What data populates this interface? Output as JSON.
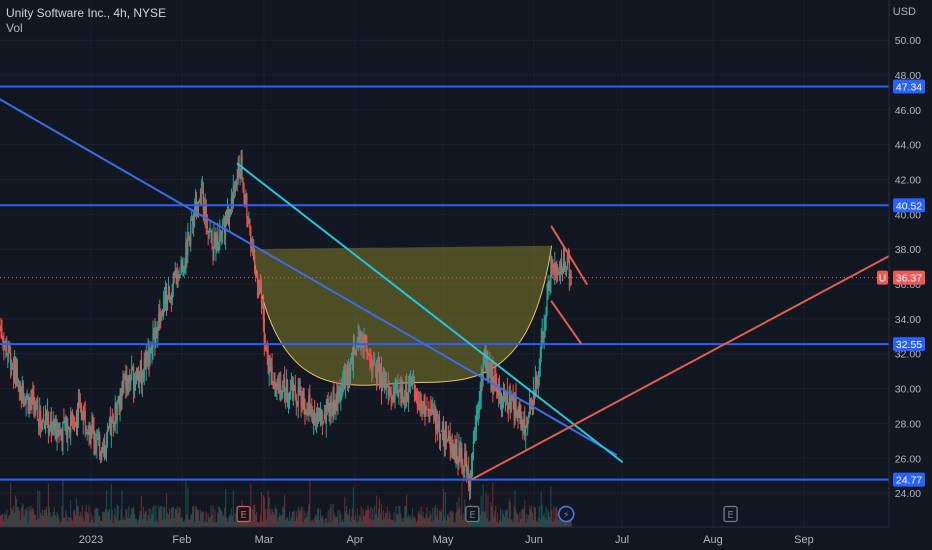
{
  "header": {
    "title": "Unity Software Inc., 4h, NYSE",
    "volume_label": "Vol",
    "currency": "USD"
  },
  "colors": {
    "background": "#131722",
    "grid": "#1e222d",
    "candle_up": "#26a69a",
    "candle_down": "#ef5350",
    "horizontal_levels": "#2962ff",
    "downtrend_blue": "#3b6fe8",
    "downtrend_teal": "#26c6da",
    "uptrend_red": "#e0604f",
    "cup_fill": "#7e7a2a",
    "cup_outline": "#e6c868",
    "price_badge": "#f05a55"
  },
  "chart_data": {
    "type": "line",
    "title": "Unity Software Inc., 4h, NYSE",
    "xlabel": "",
    "ylabel": "USD",
    "ylim": [
      22.8,
      51.5
    ],
    "xlim": [
      "2022-12-01",
      "2023-09-30"
    ],
    "grid": true,
    "x_tick_labels": [
      "2023",
      "Feb",
      "Mar",
      "Apr",
      "May",
      "Jun",
      "Jul",
      "Aug",
      "Sep"
    ],
    "x_tick_dates": [
      "2023-01-01",
      "2023-02-01",
      "2023-03-01",
      "2023-04-01",
      "2023-05-01",
      "2023-06-01",
      "2023-07-01",
      "2023-08-01",
      "2023-09-01"
    ],
    "y_ticks": [
      24,
      26,
      28,
      30,
      32,
      34,
      36,
      38,
      40,
      42,
      44,
      46,
      48,
      50
    ],
    "y_tick_labels": [
      "24.00",
      "26.00",
      "28.00",
      "30.00",
      "32.00",
      "34.00",
      "36.00",
      "38.00",
      "40.00",
      "42.00",
      "44.00",
      "46.00",
      "48.00",
      "50.00"
    ],
    "last_price": 36.37,
    "last_price_label": "36.37",
    "symbol_badge": "U",
    "horizontal_levels": [
      {
        "value": 47.34,
        "label": "47.34"
      },
      {
        "value": 40.52,
        "label": "40.52"
      },
      {
        "value": 32.55,
        "label": "32.55"
      },
      {
        "value": 24.77,
        "label": "24.77"
      }
    ],
    "close_series": [
      {
        "x": "2022-12-01",
        "y": 33.5
      },
      {
        "x": "2022-12-08",
        "y": 30.0
      },
      {
        "x": "2022-12-15",
        "y": 28.3
      },
      {
        "x": "2022-12-22",
        "y": 27.5
      },
      {
        "x": "2022-12-29",
        "y": 28.8
      },
      {
        "x": "2023-01-05",
        "y": 26.2
      },
      {
        "x": "2023-01-12",
        "y": 30.2
      },
      {
        "x": "2023-01-19",
        "y": 31.0
      },
      {
        "x": "2023-01-26",
        "y": 34.8
      },
      {
        "x": "2023-02-02",
        "y": 37.5
      },
      {
        "x": "2023-02-07",
        "y": 41.5
      },
      {
        "x": "2023-02-12",
        "y": 38.0
      },
      {
        "x": "2023-02-17",
        "y": 40.2
      },
      {
        "x": "2023-02-21",
        "y": 42.8
      },
      {
        "x": "2023-02-24",
        "y": 39.2
      },
      {
        "x": "2023-02-28",
        "y": 35.0
      },
      {
        "x": "2023-03-02",
        "y": 31.5
      },
      {
        "x": "2023-03-07",
        "y": 30.0
      },
      {
        "x": "2023-03-13",
        "y": 29.5
      },
      {
        "x": "2023-03-20",
        "y": 28.2
      },
      {
        "x": "2023-03-27",
        "y": 29.8
      },
      {
        "x": "2023-04-03",
        "y": 32.8
      },
      {
        "x": "2023-04-08",
        "y": 31.0
      },
      {
        "x": "2023-04-14",
        "y": 29.5
      },
      {
        "x": "2023-04-20",
        "y": 30.0
      },
      {
        "x": "2023-04-27",
        "y": 28.5
      },
      {
        "x": "2023-05-03",
        "y": 27.0
      },
      {
        "x": "2023-05-08",
        "y": 25.8
      },
      {
        "x": "2023-05-10",
        "y": 24.9
      },
      {
        "x": "2023-05-12",
        "y": 28.0
      },
      {
        "x": "2023-05-15",
        "y": 31.8
      },
      {
        "x": "2023-05-19",
        "y": 29.8
      },
      {
        "x": "2023-05-24",
        "y": 29.2
      },
      {
        "x": "2023-05-29",
        "y": 28.0
      },
      {
        "x": "2023-06-01",
        "y": 29.8
      },
      {
        "x": "2023-06-05",
        "y": 34.0
      },
      {
        "x": "2023-06-07",
        "y": 37.8
      },
      {
        "x": "2023-06-09",
        "y": 36.3
      },
      {
        "x": "2023-06-12",
        "y": 37.5
      },
      {
        "x": "2023-06-14",
        "y": 36.4
      }
    ],
    "trendlines": [
      {
        "name": "downtrend-blue",
        "color": "#3b6fe8",
        "points": [
          {
            "x": "2022-12-01",
            "y": 46.6
          },
          {
            "x": "2023-06-29",
            "y": 26.2
          }
        ]
      },
      {
        "name": "downtrend-teal",
        "color": "#26c6da",
        "points": [
          {
            "x": "2023-02-20",
            "y": 42.9
          },
          {
            "x": "2023-07-01",
            "y": 25.8
          }
        ]
      },
      {
        "name": "uptrend-red",
        "color": "#e0604f",
        "points": [
          {
            "x": "2023-05-11",
            "y": 24.8
          },
          {
            "x": "2023-09-30",
            "y": 37.6
          }
        ]
      },
      {
        "name": "flag-upper",
        "color": "#e0604f",
        "points": [
          {
            "x": "2023-06-07",
            "y": 39.3
          },
          {
            "x": "2023-06-19",
            "y": 36.0
          }
        ]
      },
      {
        "name": "flag-lower",
        "color": "#e0604f",
        "points": [
          {
            "x": "2023-06-07",
            "y": 35.0
          },
          {
            "x": "2023-06-17",
            "y": 32.6
          }
        ]
      }
    ],
    "cup_pattern": {
      "left": {
        "x": "2023-02-25",
        "y": 38.0
      },
      "right": {
        "x": "2023-06-07",
        "y": 38.2
      },
      "bottom": {
        "x": "2023-04-16",
        "y": 30.3
      }
    },
    "event_markers": [
      {
        "x": "2023-02-22",
        "label": "E"
      },
      {
        "x": "2023-05-11",
        "label": "E"
      },
      {
        "x": "2023-06-12",
        "label": "⚡"
      },
      {
        "x": "2023-08-07",
        "label": "E"
      }
    ]
  }
}
